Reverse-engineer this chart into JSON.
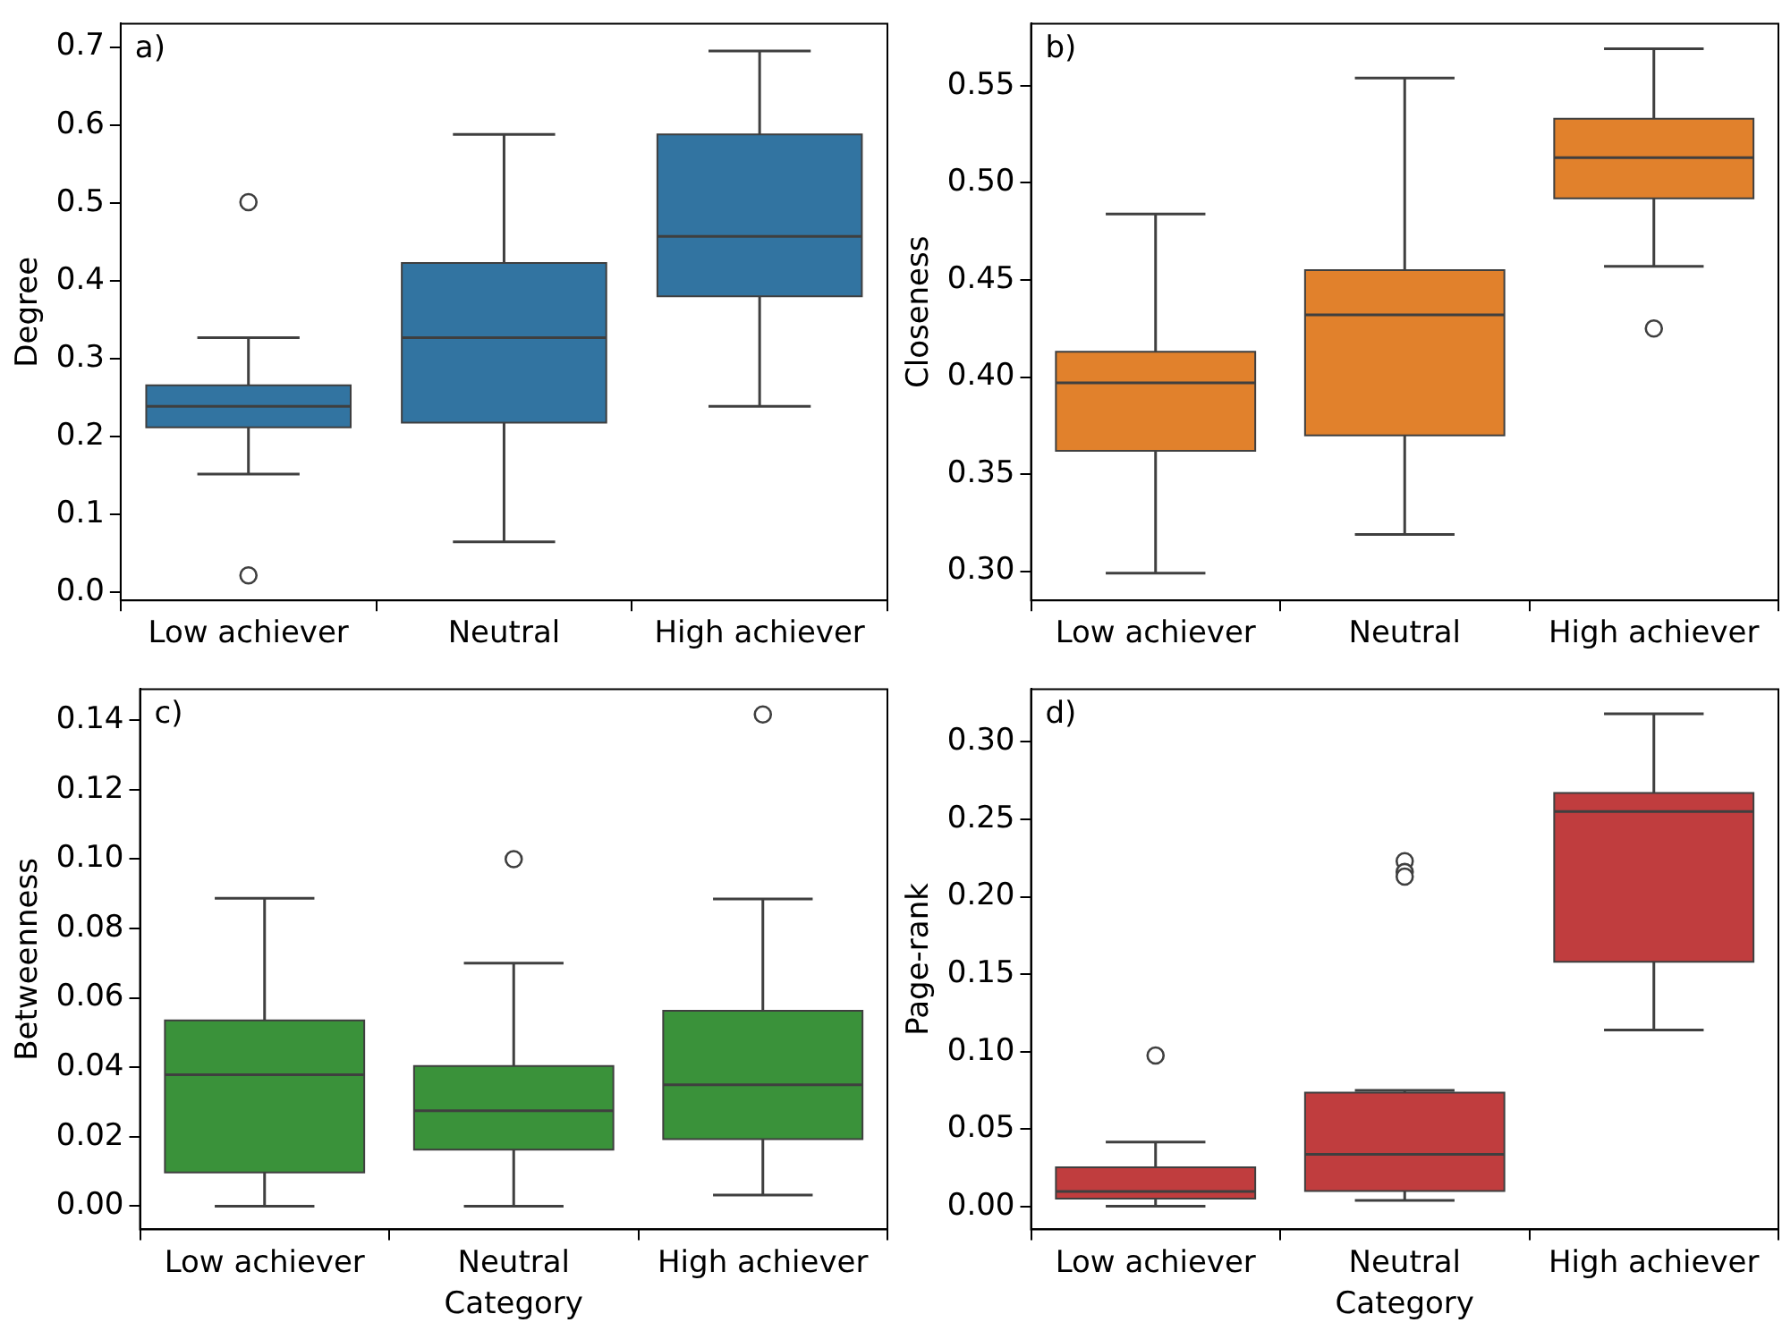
{
  "chart_data": [
    {
      "type": "box",
      "categories": [
        "Low achiever",
        "Neutral",
        "High achiever"
      ],
      "color": "#3274a1",
      "ylabel": "Degree",
      "annotations": [
        "a)"
      ],
      "ylim": [
        -0.01,
        0.73
      ],
      "yticks": [
        {
          "value": 0,
          "label": "0.0"
        },
        {
          "value": 0.1,
          "label": "0.1"
        },
        {
          "value": 0.2,
          "label": "0.2"
        },
        {
          "value": 0.3,
          "label": "0.3"
        },
        {
          "value": 0.4,
          "label": "0.4"
        },
        {
          "value": 0.5,
          "label": "0.5"
        },
        {
          "value": 0.6,
          "label": "0.6"
        },
        {
          "value": 0.7,
          "label": "0.7"
        }
      ],
      "boxes": [
        {
          "low": 0.152,
          "q1": 0.212,
          "median": 0.239,
          "q3": 0.266,
          "high": 0.327,
          "outliers": [
            0.501,
            0.022
          ]
        },
        {
          "low": 0.065,
          "q1": 0.218,
          "median": 0.327,
          "q3": 0.423,
          "high": 0.588
        },
        {
          "low": 0.239,
          "q1": 0.38,
          "median": 0.457,
          "q3": 0.588,
          "high": 0.695
        }
      ]
    },
    {
      "type": "box",
      "categories": [
        "Low achiever",
        "Neutral",
        "High achiever"
      ],
      "color": "#e1812c",
      "ylabel": "Closeness",
      "annotations": [
        "b)"
      ],
      "ylim": [
        0.285,
        0.582
      ],
      "yticks": [
        {
          "value": 0.3,
          "label": "0.30"
        },
        {
          "value": 0.35,
          "label": "0.35"
        },
        {
          "value": 0.4,
          "label": "0.40"
        },
        {
          "value": 0.45,
          "label": "0.45"
        },
        {
          "value": 0.5,
          "label": "0.50"
        },
        {
          "value": 0.55,
          "label": "0.55"
        }
      ],
      "boxes": [
        {
          "low": 0.299,
          "q1": 0.362,
          "median": 0.397,
          "q3": 0.413,
          "high": 0.484
        },
        {
          "low": 0.319,
          "q1": 0.37,
          "median": 0.432,
          "q3": 0.455,
          "high": 0.554
        },
        {
          "low": 0.457,
          "q1": 0.492,
          "median": 0.513,
          "q3": 0.533,
          "high": 0.569,
          "outliers": [
            0.425
          ]
        }
      ]
    },
    {
      "type": "box",
      "categories": [
        "Low achiever",
        "Neutral",
        "High achiever"
      ],
      "color": "#3a923a",
      "xlabel": "Category",
      "ylabel": "Betweenness",
      "annotations": [
        "c)"
      ],
      "ylim": [
        -0.0067,
        0.149
      ],
      "yticks": [
        {
          "value": 0,
          "label": "0.00"
        },
        {
          "value": 0.02,
          "label": "0.02"
        },
        {
          "value": 0.04,
          "label": "0.04"
        },
        {
          "value": 0.06,
          "label": "0.06"
        },
        {
          "value": 0.08,
          "label": "0.08"
        },
        {
          "value": 0.1,
          "label": "0.10"
        },
        {
          "value": 0.12,
          "label": "0.12"
        },
        {
          "value": 0.14,
          "label": "0.14"
        }
      ],
      "boxes": [
        {
          "low": 0,
          "q1": 0.0097,
          "median": 0.0379,
          "q3": 0.0535,
          "high": 0.0887
        },
        {
          "low": 0,
          "q1": 0.0163,
          "median": 0.0275,
          "q3": 0.0404,
          "high": 0.07,
          "outliers": [
            0.1
          ]
        },
        {
          "low": 0.0032,
          "q1": 0.0193,
          "median": 0.035,
          "q3": 0.0563,
          "high": 0.0885,
          "outliers": [
            0.1417
          ]
        }
      ]
    },
    {
      "type": "box",
      "categories": [
        "Low achiever",
        "Neutral",
        "High achiever"
      ],
      "color": "#c03d3e",
      "xlabel": "Category",
      "ylabel": "Page-rank",
      "annotations": [
        "d)"
      ],
      "ylim": [
        -0.0146,
        0.334
      ],
      "yticks": [
        {
          "value": 0,
          "label": "0.00"
        },
        {
          "value": 0.05,
          "label": "0.05"
        },
        {
          "value": 0.1,
          "label": "0.10"
        },
        {
          "value": 0.15,
          "label": "0.15"
        },
        {
          "value": 0.2,
          "label": "0.20"
        },
        {
          "value": 0.25,
          "label": "0.25"
        },
        {
          "value": 0.3,
          "label": "0.30"
        }
      ],
      "boxes": [
        {
          "low": 0.0004,
          "q1": 0.0053,
          "median": 0.0098,
          "q3": 0.0255,
          "high": 0.0417,
          "outliers": [
            0.0976
          ]
        },
        {
          "low": 0.0041,
          "q1": 0.0101,
          "median": 0.0338,
          "q3": 0.0736,
          "high": 0.0751,
          "outliers": [
            0.223,
            0.216,
            0.213
          ]
        },
        {
          "low": 0.114,
          "q1": 0.158,
          "median": 0.255,
          "q3": 0.267,
          "high": 0.318
        }
      ]
    }
  ]
}
